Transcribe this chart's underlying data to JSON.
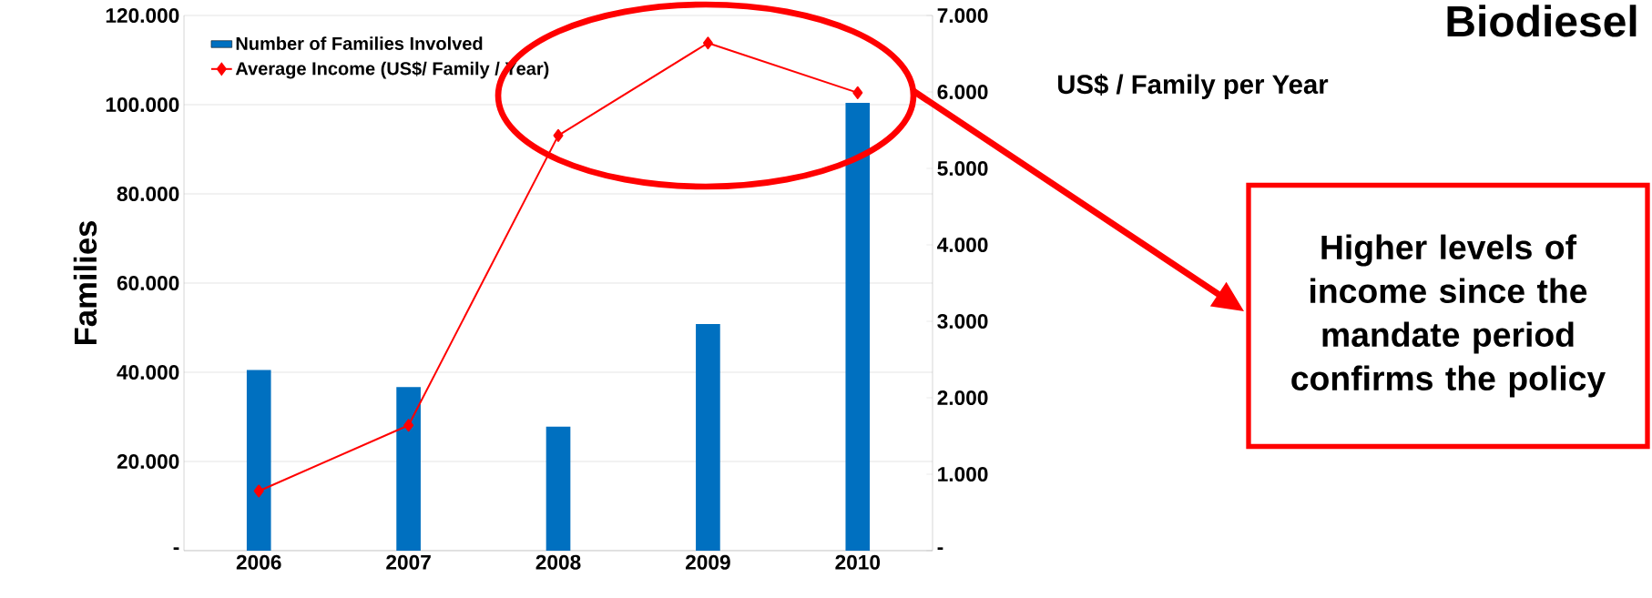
{
  "chart_data": {
    "type": "bar",
    "title": "Biodiesel",
    "ylabel": "Families",
    "y2label": "US$ / Family per Year",
    "categories": [
      "2006",
      "2007",
      "2008",
      "2009",
      "2010"
    ],
    "series": [
      {
        "name": "Number of Families Involved",
        "color": "#0070c0",
        "values": [
          40500,
          36700,
          27800,
          50800,
          100400
        ]
      },
      {
        "name": "Average Income (US$/ Family / Year)",
        "type": "line",
        "axis": "y2",
        "color": "#ff0000",
        "values": [
          780,
          1640,
          5430,
          6640,
          5990
        ]
      }
    ],
    "ylim": [
      0,
      120000
    ],
    "yticks": [
      {
        "value": 0,
        "label": "-"
      },
      {
        "value": 20000,
        "label": "20.000"
      },
      {
        "value": 40000,
        "label": "40.000"
      },
      {
        "value": 60000,
        "label": "60.000"
      },
      {
        "value": 80000,
        "label": "80.000"
      },
      {
        "value": 100000,
        "label": "100.000"
      },
      {
        "value": 120000,
        "label": "120.000"
      }
    ],
    "y2lim": [
      0,
      7000
    ],
    "y2ticks": [
      {
        "value": 0,
        "label": "-"
      },
      {
        "value": 1000,
        "label": "1.000"
      },
      {
        "value": 2000,
        "label": "2.000"
      },
      {
        "value": 3000,
        "label": "3.000"
      },
      {
        "value": 4000,
        "label": "4.000"
      },
      {
        "value": 5000,
        "label": "5.000"
      },
      {
        "value": 6000,
        "label": "6.000"
      },
      {
        "value": 7000,
        "label": "7.000"
      }
    ],
    "grid": "y",
    "legend": "top left",
    "marker": "diamond",
    "line_style": "solid",
    "annotations": [
      "Higher levels of income since the mandate period confirms the policy"
    ]
  }
}
